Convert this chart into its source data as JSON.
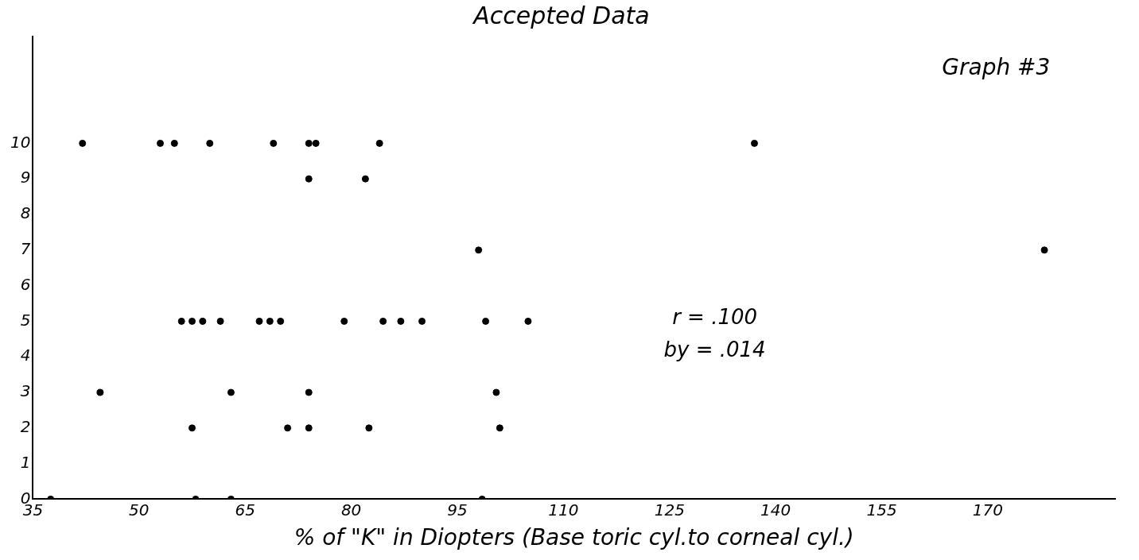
{
  "chart_data": {
    "type": "scatter",
    "title": "Accepted Data",
    "xlabel": "% of \"K\" in Diopters (Base toric cyl.to corneal cyl.)",
    "annotations": [
      "Graph #3",
      "r = .100",
      "by = .014"
    ],
    "series": [
      {
        "color": "#000000",
        "x": [
          42,
          53,
          55,
          60,
          69,
          74,
          75,
          84,
          137,
          74,
          82,
          98,
          178,
          56,
          57.5,
          59,
          61.5,
          67,
          68.5,
          70,
          79,
          84.5,
          87,
          90,
          99,
          105,
          44.5,
          63,
          74,
          100.5,
          57.5,
          71,
          74,
          82.5,
          101,
          37.5,
          58,
          63,
          98.5
        ],
        "values": [
          10,
          10,
          10,
          10,
          10,
          10,
          10,
          10,
          10,
          9,
          9,
          7,
          7,
          5,
          5,
          5,
          5,
          5,
          5,
          5,
          5,
          5,
          5,
          5,
          5,
          5,
          3,
          3,
          3,
          3,
          2,
          2,
          2,
          2,
          2,
          0,
          0,
          0,
          0
        ]
      }
    ],
    "xlim": [
      35,
      188
    ],
    "xticks": [
      35,
      50,
      65,
      80,
      95,
      110,
      125,
      140,
      155,
      170
    ],
    "ylim": [
      0,
      13
    ],
    "yticks": [
      0,
      1,
      2,
      3,
      4,
      5,
      6,
      7,
      8,
      9,
      10
    ],
    "grid": false,
    "legend": false,
    "marker": "circle"
  }
}
